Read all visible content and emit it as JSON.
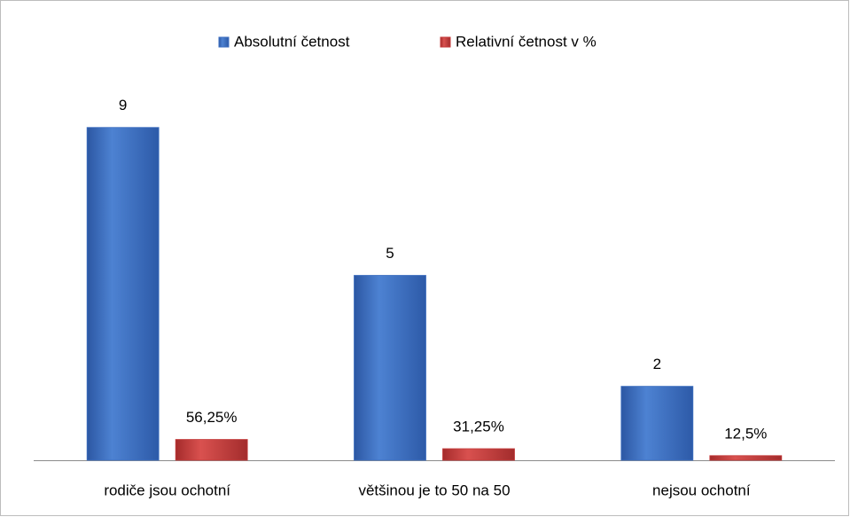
{
  "chart_data": {
    "type": "bar",
    "categories": [
      "rodiče jsou ochotní",
      "většinou je to 50 na 50",
      "nejsou ochotní"
    ],
    "series": [
      {
        "name": "Absolutní četnost",
        "color": "#3e6fc0",
        "values": [
          9,
          5,
          2
        ]
      },
      {
        "name": "Relativní četnost v %",
        "color": "#c43a3a",
        "values": [
          0.5625,
          0.3125,
          0.125
        ],
        "value_labels": [
          "56,25%",
          "31,25%",
          "12,5%"
        ]
      }
    ],
    "ylim": [
      0,
      10
    ],
    "legend": "top"
  }
}
